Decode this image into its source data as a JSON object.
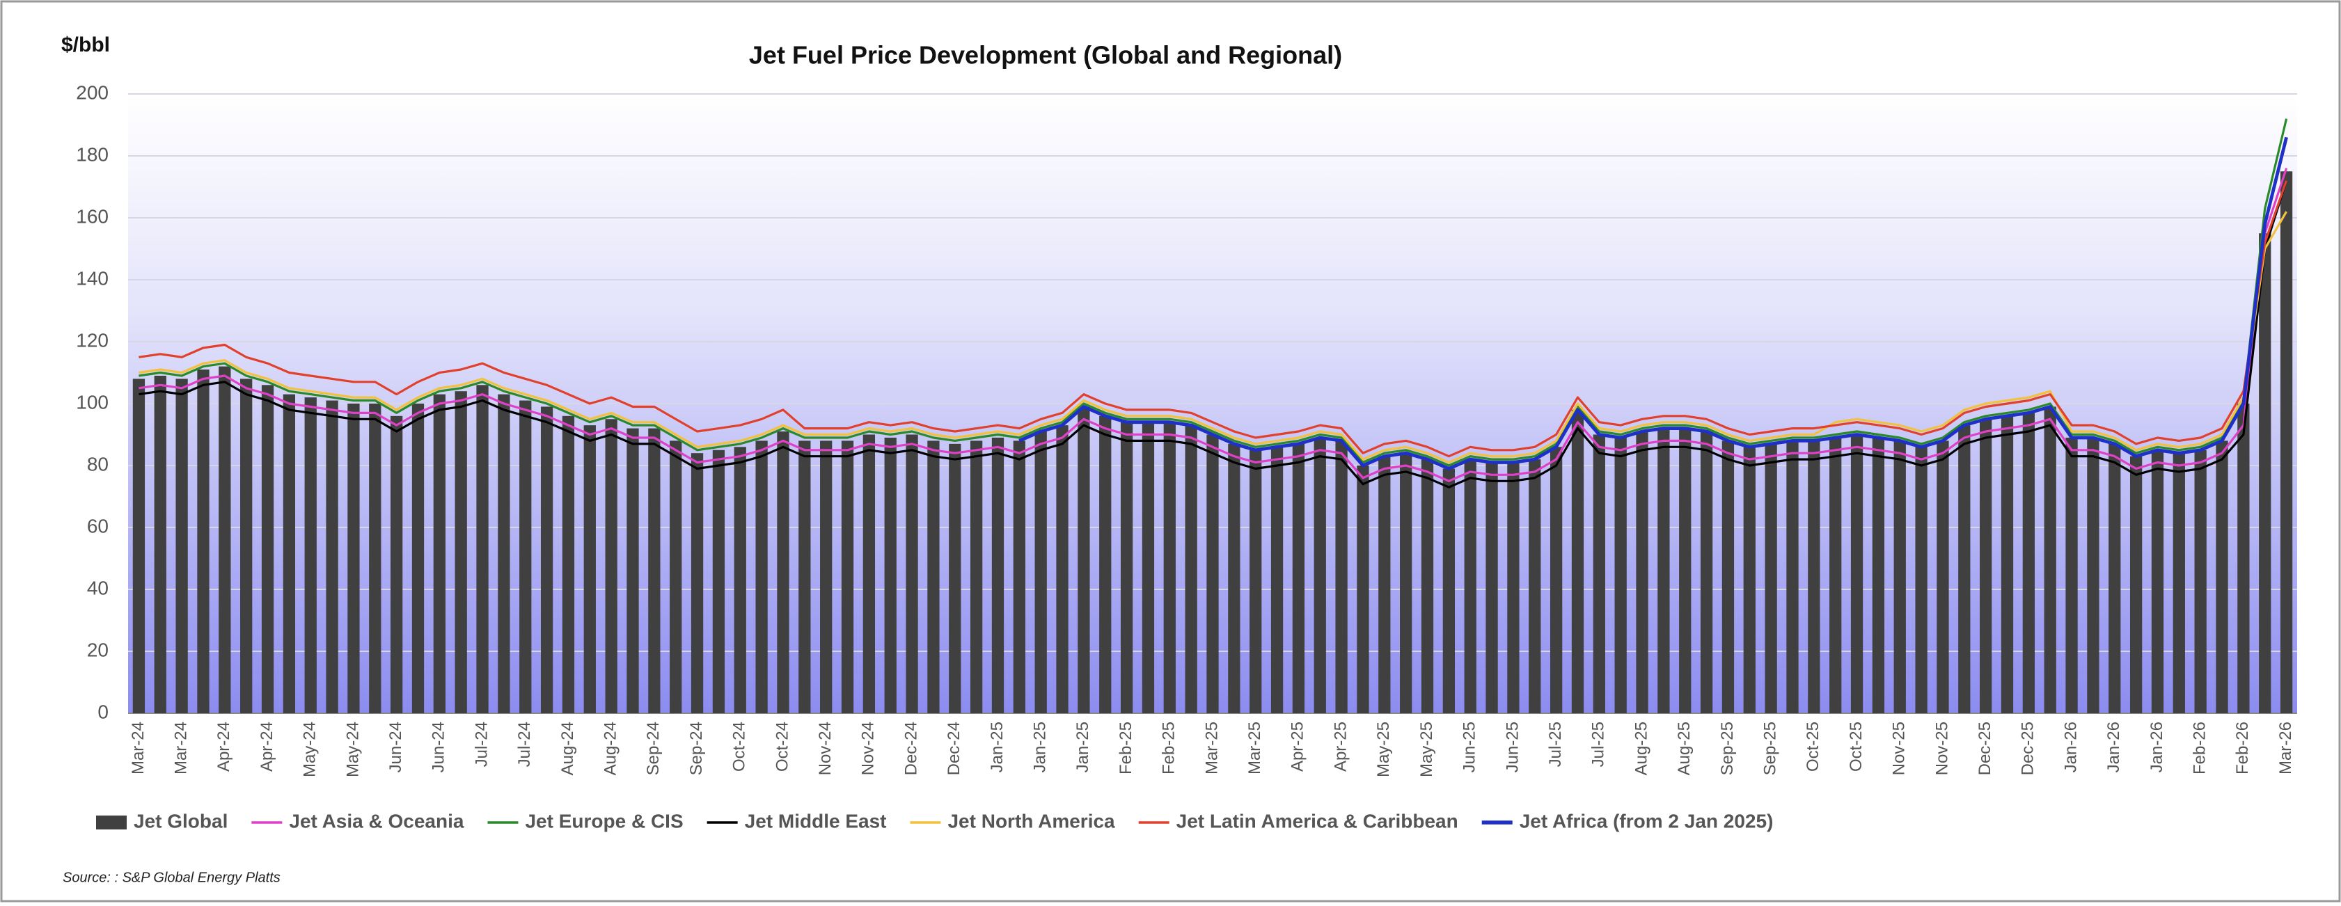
{
  "chart_data": {
    "type": "combo",
    "title": "Jet Fuel Price Development (Global and Regional)",
    "y_label": "$/bbl",
    "source": "Source: : S&P Global Energy Platts",
    "ylim": [
      0,
      200
    ],
    "yticks": [
      0,
      20,
      40,
      60,
      80,
      100,
      120,
      140,
      160,
      180,
      200
    ],
    "grid": true,
    "legend": "bottom",
    "categories": [
      "Mar-24",
      null,
      "Mar-24",
      null,
      "Apr-24",
      null,
      "Apr-24",
      null,
      "May-24",
      null,
      "May-24",
      null,
      "Jun-24",
      null,
      "Jun-24",
      null,
      "Jul-24",
      null,
      "Jul-24",
      null,
      "Aug-24",
      null,
      "Aug-24",
      null,
      "Sep-24",
      null,
      "Sep-24",
      null,
      "Oct-24",
      null,
      "Oct-24",
      null,
      "Nov-24",
      null,
      "Nov-24",
      null,
      "Dec-24",
      null,
      "Dec-24",
      null,
      "Jan-25",
      null,
      "Jan-25",
      null,
      "Jan-25",
      null,
      "Feb-25",
      null,
      "Feb-25",
      null,
      "Mar-25",
      null,
      "Mar-25",
      null,
      "Apr-25",
      null,
      "Apr-25",
      null,
      "May-25",
      null,
      "May-25",
      null,
      "Jun-25",
      null,
      "Jun-25",
      null,
      "Jul-25",
      null,
      "Jul-25",
      null,
      "Aug-25",
      null,
      "Aug-25",
      null,
      "Sep-25",
      null,
      "Sep-25",
      null,
      "Oct-25",
      null,
      "Oct-25",
      null,
      "Nov-25",
      null,
      "Nov-25",
      null,
      "Dec-25",
      null,
      "Dec-25",
      null,
      "Jan-26",
      null,
      "Jan-26",
      null,
      "Jan-26",
      null,
      "Feb-26",
      null,
      "Feb-26",
      null,
      "Mar-26"
    ],
    "series": [
      {
        "name": "Jet Global",
        "type": "bar",
        "color": "#404040",
        "values": [
          108,
          109,
          108,
          111,
          112,
          108,
          106,
          103,
          102,
          101,
          100,
          100,
          96,
          100,
          103,
          104,
          106,
          103,
          101,
          99,
          96,
          93,
          95,
          92,
          92,
          88,
          84,
          85,
          86,
          88,
          91,
          88,
          88,
          88,
          90,
          89,
          90,
          88,
          87,
          88,
          89,
          88,
          91,
          93,
          99,
          96,
          94,
          94,
          94,
          93,
          90,
          87,
          85,
          86,
          87,
          89,
          88,
          80,
          83,
          84,
          82,
          79,
          82,
          81,
          81,
          82,
          86,
          98,
          90,
          89,
          91,
          92,
          92,
          91,
          88,
          86,
          87,
          88,
          88,
          89,
          90,
          89,
          88,
          86,
          88,
          93,
          95,
          96,
          97,
          99,
          89,
          89,
          87,
          83,
          85,
          84,
          85,
          88,
          100,
          155,
          175
        ]
      },
      {
        "name": "Jet Asia & Oceania",
        "type": "line",
        "color": "#e040c8",
        "values": [
          105,
          106,
          105,
          108,
          109,
          105,
          103,
          100,
          99,
          98,
          97,
          97,
          93,
          97,
          100,
          101,
          103,
          100,
          98,
          96,
          93,
          90,
          92,
          89,
          89,
          85,
          81,
          82,
          83,
          85,
          88,
          85,
          85,
          85,
          87,
          86,
          87,
          85,
          84,
          85,
          86,
          84,
          87,
          89,
          95,
          92,
          90,
          90,
          90,
          89,
          86,
          83,
          81,
          82,
          83,
          85,
          84,
          76,
          79,
          80,
          78,
          75,
          78,
          77,
          77,
          78,
          82,
          94,
          86,
          85,
          87,
          88,
          88,
          87,
          84,
          82,
          83,
          84,
          84,
          85,
          86,
          85,
          84,
          82,
          84,
          89,
          91,
          92,
          93,
          95,
          85,
          85,
          83,
          79,
          81,
          80,
          81,
          84,
          93,
          155,
          176
        ]
      },
      {
        "name": "Jet Europe & CIS",
        "type": "line",
        "color": "#2a8a2a",
        "values": [
          109,
          110,
          109,
          112,
          113,
          109,
          107,
          104,
          103,
          102,
          101,
          101,
          97,
          101,
          104,
          105,
          107,
          104,
          102,
          100,
          97,
          94,
          96,
          93,
          93,
          89,
          85,
          86,
          87,
          89,
          92,
          89,
          89,
          89,
          91,
          90,
          91,
          89,
          88,
          89,
          90,
          89,
          92,
          94,
          100,
          97,
          95,
          95,
          95,
          94,
          91,
          88,
          86,
          87,
          88,
          90,
          89,
          81,
          84,
          85,
          83,
          80,
          83,
          82,
          82,
          83,
          87,
          99,
          91,
          90,
          92,
          93,
          93,
          92,
          89,
          87,
          88,
          89,
          89,
          90,
          91,
          90,
          89,
          87,
          89,
          94,
          96,
          97,
          98,
          100,
          90,
          90,
          88,
          84,
          86,
          85,
          86,
          89,
          101,
          163,
          192
        ]
      },
      {
        "name": "Jet Middle East",
        "type": "line",
        "color": "#000000",
        "values": [
          103,
          104,
          103,
          106,
          107,
          103,
          101,
          98,
          97,
          96,
          95,
          95,
          91,
          95,
          98,
          99,
          101,
          98,
          96,
          94,
          91,
          88,
          90,
          87,
          87,
          83,
          79,
          80,
          81,
          83,
          86,
          83,
          83,
          83,
          85,
          84,
          85,
          83,
          82,
          83,
          84,
          82,
          85,
          87,
          93,
          90,
          88,
          88,
          88,
          87,
          84,
          81,
          79,
          80,
          81,
          83,
          82,
          74,
          77,
          78,
          76,
          73,
          76,
          75,
          75,
          76,
          80,
          92,
          84,
          83,
          85,
          86,
          86,
          85,
          82,
          80,
          81,
          82,
          82,
          83,
          84,
          83,
          82,
          80,
          82,
          87,
          89,
          90,
          91,
          93,
          83,
          83,
          81,
          77,
          79,
          78,
          79,
          82,
          90,
          150,
          172
        ]
      },
      {
        "name": "Jet North America",
        "type": "line",
        "color": "#f2c23c",
        "values": [
          110,
          111,
          110,
          113,
          114,
          110,
          108,
          105,
          104,
          103,
          102,
          102,
          98,
          102,
          105,
          106,
          108,
          105,
          103,
          101,
          98,
          95,
          97,
          94,
          94,
          90,
          86,
          87,
          88,
          90,
          93,
          90,
          90,
          90,
          92,
          91,
          92,
          90,
          89,
          90,
          91,
          90,
          93,
          95,
          101,
          98,
          96,
          96,
          96,
          95,
          92,
          89,
          87,
          88,
          89,
          91,
          90,
          82,
          85,
          86,
          84,
          81,
          84,
          83,
          83,
          84,
          88,
          100,
          92,
          91,
          93,
          94,
          94,
          93,
          90,
          88,
          89,
          90,
          90,
          94,
          95,
          94,
          93,
          91,
          93,
          98,
          100,
          101,
          102,
          104,
          91,
          91,
          89,
          85,
          87,
          86,
          87,
          90,
          102,
          150,
          162
        ]
      },
      {
        "name": "Jet Latin America & Caribbean",
        "type": "line",
        "color": "#e0402c",
        "values": [
          115,
          116,
          115,
          118,
          119,
          115,
          113,
          110,
          109,
          108,
          107,
          107,
          103,
          107,
          110,
          111,
          113,
          110,
          108,
          106,
          103,
          100,
          102,
          99,
          99,
          95,
          91,
          92,
          93,
          95,
          98,
          92,
          92,
          92,
          94,
          93,
          94,
          92,
          91,
          92,
          93,
          92,
          95,
          97,
          103,
          100,
          98,
          98,
          98,
          97,
          94,
          91,
          89,
          90,
          91,
          93,
          92,
          84,
          87,
          88,
          86,
          83,
          86,
          85,
          85,
          86,
          90,
          102,
          94,
          93,
          95,
          96,
          96,
          95,
          92,
          90,
          91,
          92,
          92,
          93,
          94,
          93,
          92,
          90,
          92,
          97,
          99,
          100,
          101,
          103,
          93,
          93,
          91,
          87,
          89,
          88,
          89,
          92,
          104,
          152,
          172
        ]
      },
      {
        "name": "Jet Africa (from 2 Jan 2025)",
        "type": "line",
        "color": "#1f30c8",
        "width": 3,
        "values": [
          null,
          null,
          null,
          null,
          null,
          null,
          null,
          null,
          null,
          null,
          null,
          null,
          null,
          null,
          null,
          null,
          null,
          null,
          null,
          null,
          null,
          null,
          null,
          null,
          null,
          null,
          null,
          null,
          null,
          null,
          null,
          null,
          null,
          null,
          null,
          null,
          null,
          null,
          null,
          null,
          null,
          88,
          91,
          93,
          99,
          96,
          94,
          94,
          94,
          93,
          90,
          87,
          85,
          86,
          87,
          89,
          88,
          80,
          83,
          84,
          82,
          79,
          82,
          81,
          81,
          82,
          86,
          98,
          90,
          89,
          91,
          92,
          92,
          91,
          88,
          86,
          87,
          88,
          88,
          89,
          90,
          89,
          88,
          86,
          88,
          93,
          95,
          96,
          97,
          99,
          89,
          89,
          87,
          83,
          85,
          84,
          85,
          88,
          100,
          158,
          186
        ]
      }
    ]
  }
}
